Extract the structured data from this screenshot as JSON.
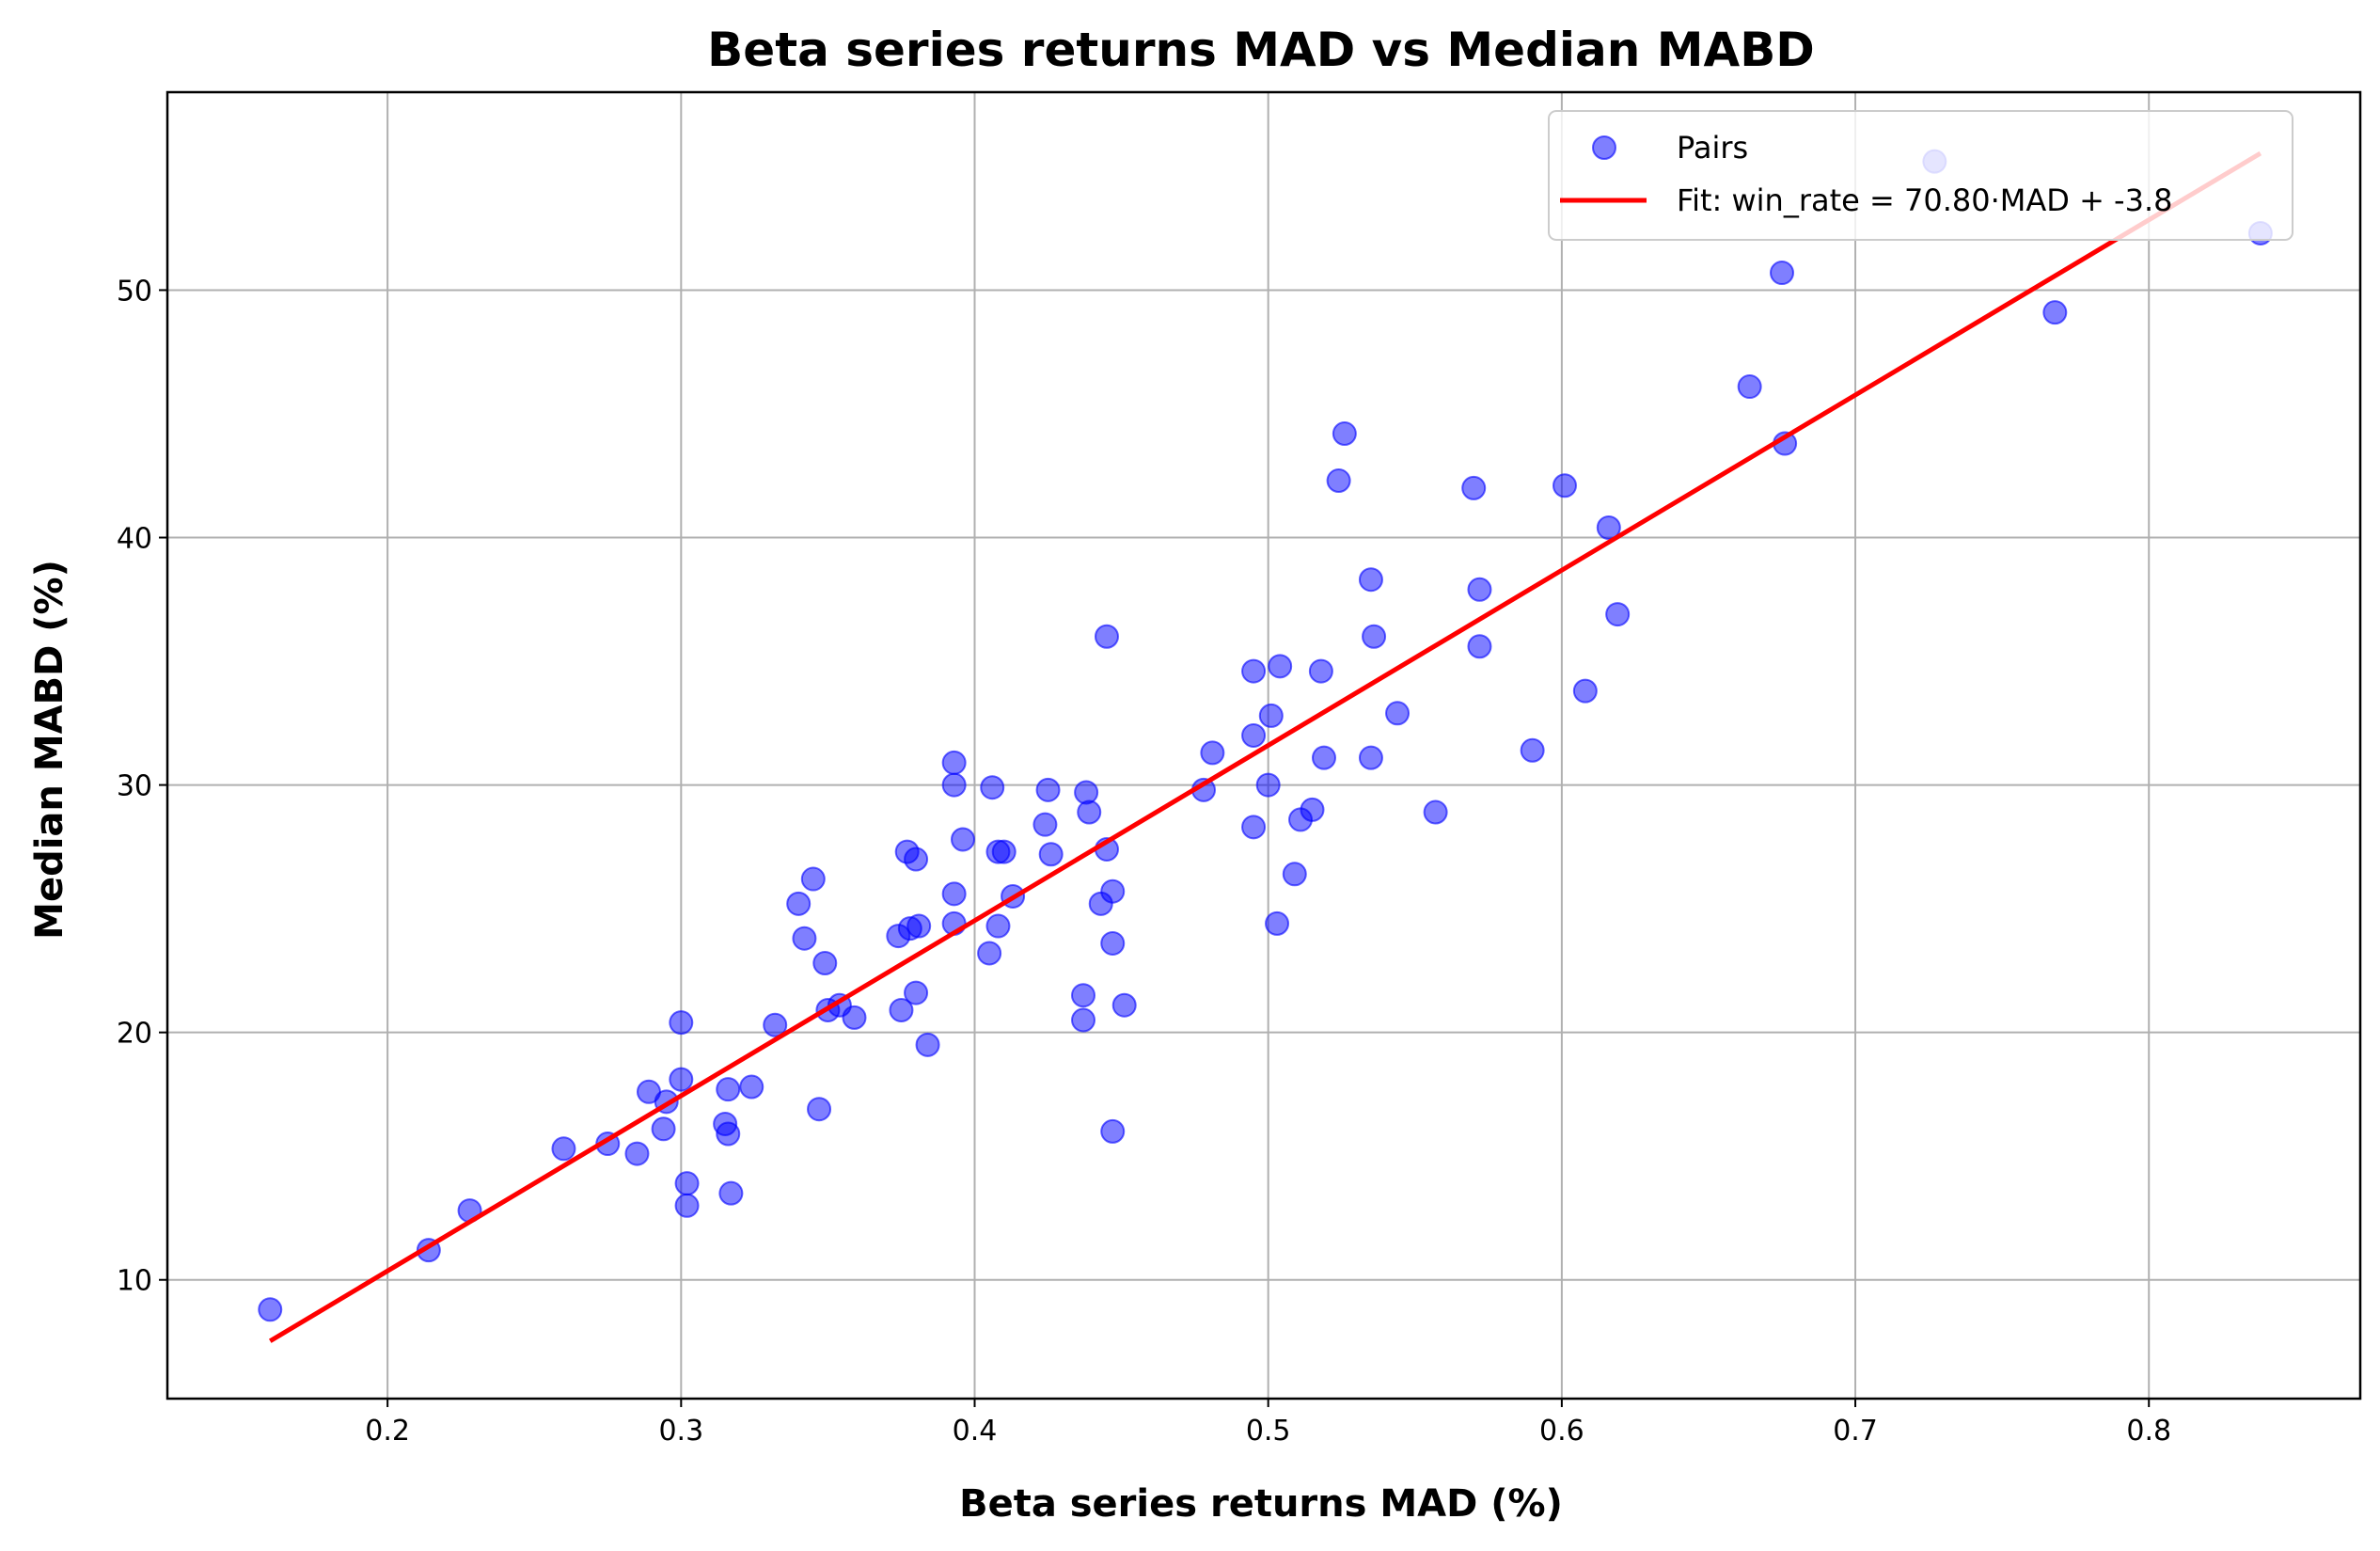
{
  "chart_data": {
    "type": "scatter",
    "title": "Beta series returns MAD vs Median MABD",
    "xlabel": "Beta series returns MAD (%)",
    "ylabel": "Median MABD (%)",
    "xlim": [
      0.125,
      0.872
    ],
    "ylim": [
      5.2,
      58.0
    ],
    "xticks": [
      0.2,
      0.3,
      0.4,
      0.5,
      0.6,
      0.7,
      0.8
    ],
    "xtick_labels": [
      "0.2",
      "0.3",
      "0.4",
      "0.5",
      "0.6",
      "0.7",
      "0.8"
    ],
    "yticks": [
      10,
      20,
      30,
      40,
      50
    ],
    "ytick_labels": [
      "10",
      "20",
      "30",
      "40",
      "50"
    ],
    "grid": true,
    "legend_position": "top-right",
    "series": [
      {
        "name": "Pairs",
        "type": "scatter",
        "color": "#0000ff",
        "points": [
          [
            0.16,
            8.8
          ],
          [
            0.214,
            11.2
          ],
          [
            0.228,
            12.8
          ],
          [
            0.26,
            15.3
          ],
          [
            0.275,
            15.5
          ],
          [
            0.285,
            15.1
          ],
          [
            0.289,
            17.6
          ],
          [
            0.294,
            16.1
          ],
          [
            0.295,
            17.2
          ],
          [
            0.3,
            20.4
          ],
          [
            0.3,
            18.1
          ],
          [
            0.302,
            13.9
          ],
          [
            0.302,
            13.0
          ],
          [
            0.315,
            16.3
          ],
          [
            0.316,
            17.7
          ],
          [
            0.316,
            15.9
          ],
          [
            0.317,
            13.5
          ],
          [
            0.324,
            17.8
          ],
          [
            0.332,
            20.3
          ],
          [
            0.34,
            25.2
          ],
          [
            0.342,
            23.8
          ],
          [
            0.345,
            26.2
          ],
          [
            0.347,
            16.9
          ],
          [
            0.349,
            22.8
          ],
          [
            0.35,
            20.9
          ],
          [
            0.354,
            21.1
          ],
          [
            0.359,
            20.6
          ],
          [
            0.374,
            23.9
          ],
          [
            0.375,
            20.9
          ],
          [
            0.377,
            27.3
          ],
          [
            0.378,
            24.2
          ],
          [
            0.38,
            27.0
          ],
          [
            0.38,
            21.6
          ],
          [
            0.381,
            24.3
          ],
          [
            0.384,
            19.5
          ],
          [
            0.393,
            30.0
          ],
          [
            0.393,
            30.9
          ],
          [
            0.393,
            25.6
          ],
          [
            0.393,
            24.4
          ],
          [
            0.396,
            27.8
          ],
          [
            0.405,
            23.2
          ],
          [
            0.406,
            29.9
          ],
          [
            0.408,
            27.3
          ],
          [
            0.408,
            24.3
          ],
          [
            0.41,
            27.3
          ],
          [
            0.413,
            25.5
          ],
          [
            0.424,
            28.4
          ],
          [
            0.425,
            29.8
          ],
          [
            0.426,
            27.2
          ],
          [
            0.437,
            21.5
          ],
          [
            0.437,
            20.5
          ],
          [
            0.438,
            29.7
          ],
          [
            0.439,
            28.9
          ],
          [
            0.443,
            25.2
          ],
          [
            0.445,
            36.0
          ],
          [
            0.445,
            27.4
          ],
          [
            0.447,
            25.7
          ],
          [
            0.447,
            23.6
          ],
          [
            0.447,
            16.0
          ],
          [
            0.451,
            21.1
          ],
          [
            0.478,
            29.8
          ],
          [
            0.481,
            31.3
          ],
          [
            0.495,
            34.6
          ],
          [
            0.495,
            32.0
          ],
          [
            0.495,
            28.3
          ],
          [
            0.5,
            30.0
          ],
          [
            0.501,
            32.8
          ],
          [
            0.503,
            24.4
          ],
          [
            0.504,
            34.8
          ],
          [
            0.509,
            26.4
          ],
          [
            0.511,
            28.6
          ],
          [
            0.515,
            29.0
          ],
          [
            0.518,
            34.6
          ],
          [
            0.519,
            31.1
          ],
          [
            0.524,
            42.3
          ],
          [
            0.526,
            44.2
          ],
          [
            0.535,
            38.3
          ],
          [
            0.535,
            31.1
          ],
          [
            0.536,
            36.0
          ],
          [
            0.544,
            32.9
          ],
          [
            0.557,
            28.9
          ],
          [
            0.57,
            42.0
          ],
          [
            0.572,
            37.9
          ],
          [
            0.572,
            35.6
          ],
          [
            0.59,
            31.4
          ],
          [
            0.601,
            42.1
          ],
          [
            0.608,
            33.8
          ],
          [
            0.616,
            40.4
          ],
          [
            0.619,
            36.9
          ],
          [
            0.664,
            46.1
          ],
          [
            0.675,
            50.7
          ],
          [
            0.676,
            43.8
          ],
          [
            0.727,
            55.2
          ],
          [
            0.768,
            49.1
          ],
          [
            0.838,
            52.3
          ]
        ]
      },
      {
        "name": "Fit: win_rate = 70.80·MAD + -3.8",
        "type": "line",
        "color": "#ff0000",
        "slope": 70.8,
        "intercept": -3.8,
        "x_range": [
          0.16,
          0.838
        ]
      }
    ]
  }
}
